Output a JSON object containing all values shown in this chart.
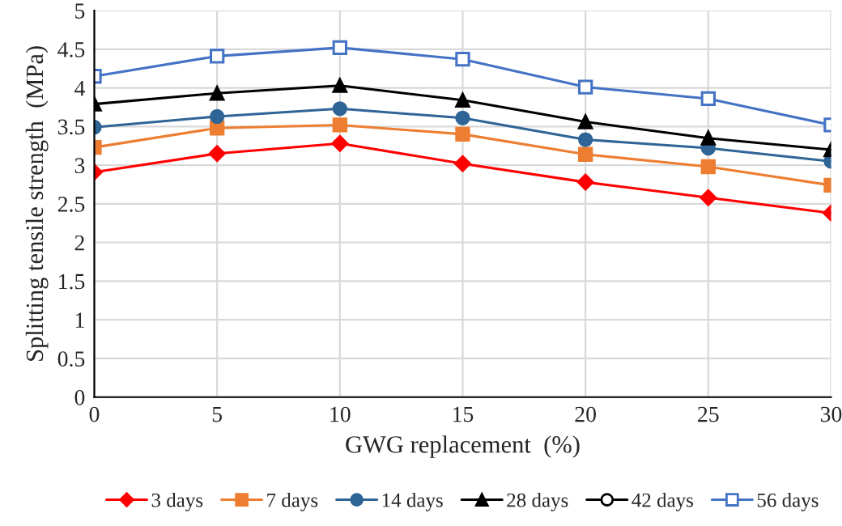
{
  "chart_data": {
    "type": "line",
    "xlabel": "GWG replacement  (%)",
    "ylabel": "Splitting tensile strength  (MPa)",
    "x": [
      0,
      5,
      10,
      15,
      20,
      25,
      30
    ],
    "series": [
      {
        "name": "3 days",
        "color": "#ff0000",
        "marker": "diamond",
        "values": [
          2.91,
          3.15,
          3.28,
          3.02,
          2.78,
          2.58,
          2.38
        ]
      },
      {
        "name": "7 days",
        "color": "#ed7d31",
        "marker": "square",
        "values": [
          3.23,
          3.48,
          3.52,
          3.4,
          3.14,
          2.98,
          2.74
        ]
      },
      {
        "name": "14 days",
        "color": "#2e6496",
        "marker": "circle",
        "values": [
          3.49,
          3.63,
          3.73,
          3.61,
          3.33,
          3.22,
          3.05
        ]
      },
      {
        "name": "28 days",
        "color": "#000000",
        "marker": "triangle",
        "values": [
          3.79,
          3.93,
          4.03,
          3.84,
          3.56,
          3.35,
          3.2
        ]
      },
      {
        "name": "42 days",
        "color": "#000000",
        "marker": "circle",
        "values": [
          null,
          null,
          null,
          null,
          null,
          null,
          null
        ]
      },
      {
        "name": "56 days",
        "color": "#4472c4",
        "marker": "square",
        "values": [
          4.15,
          4.41,
          4.52,
          4.37,
          4.01,
          3.86,
          3.52
        ]
      }
    ],
    "xlim": [
      0,
      30
    ],
    "xticks": [
      0,
      5,
      10,
      15,
      20,
      25,
      30
    ],
    "ylim": [
      0,
      5
    ],
    "yticks": [
      0,
      0.5,
      1,
      1.5,
      2,
      2.5,
      3,
      3.5,
      4,
      4.5,
      5
    ],
    "grid": true,
    "legend": "bottom",
    "line_style": "solid"
  }
}
